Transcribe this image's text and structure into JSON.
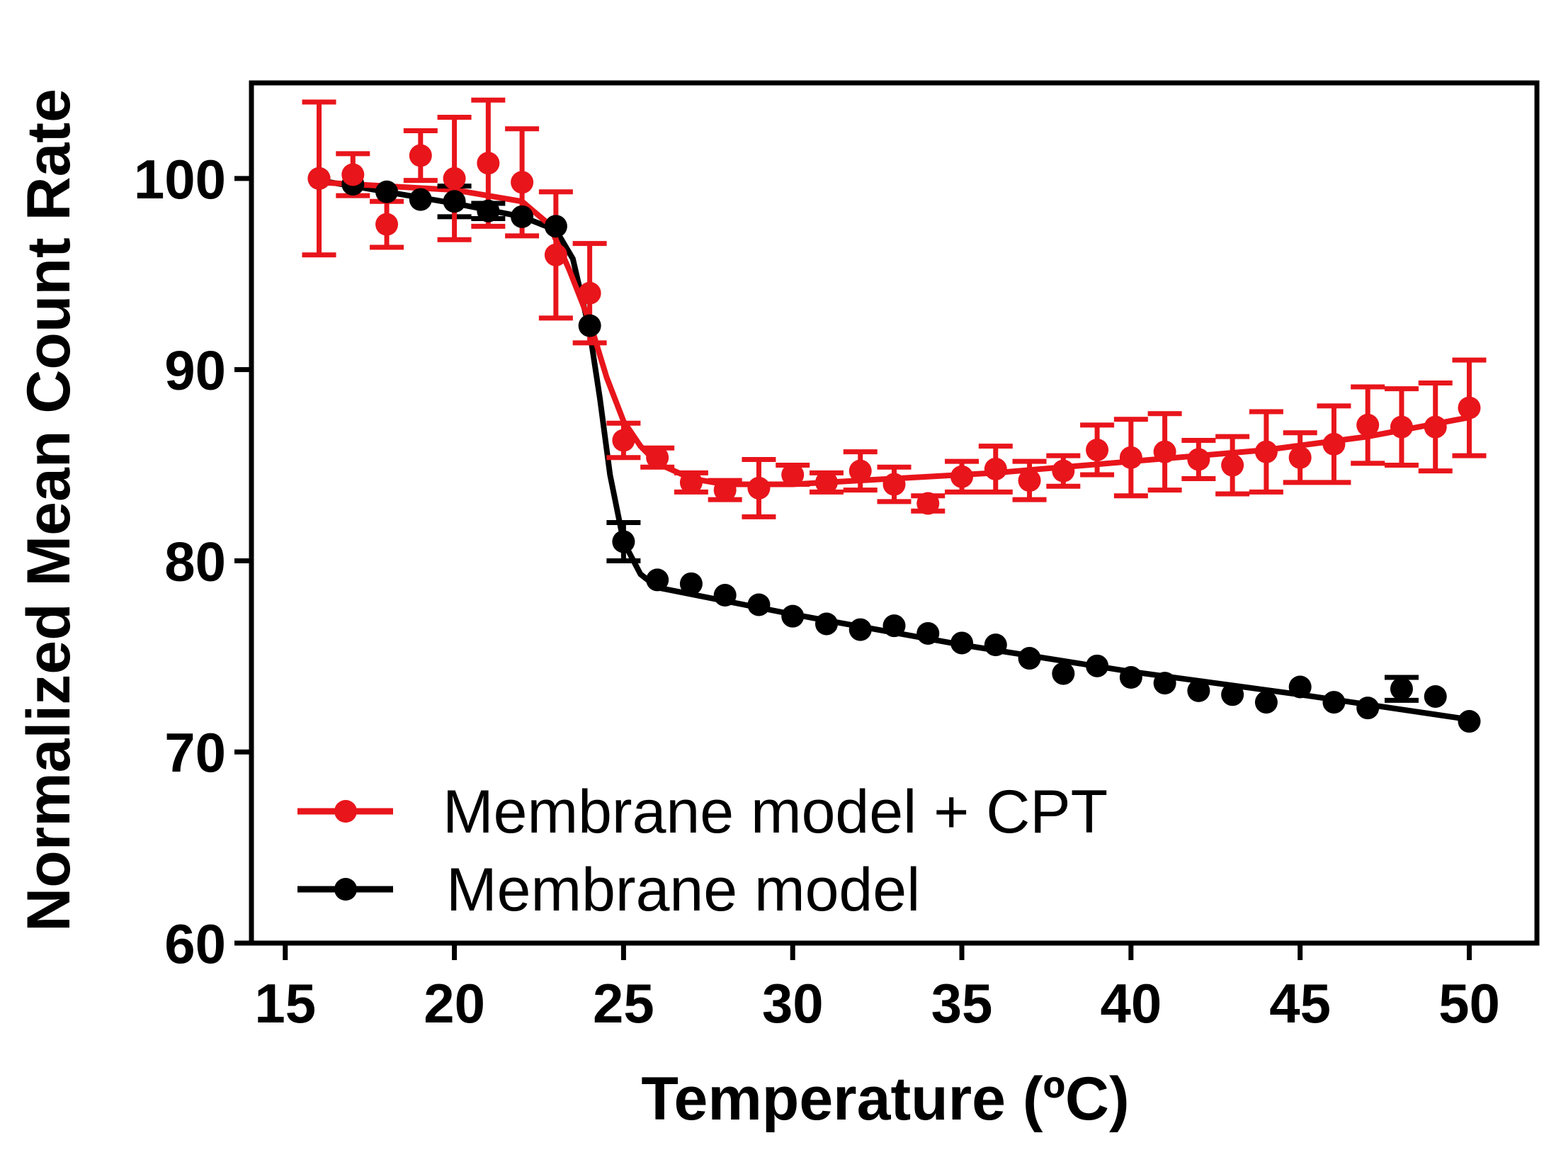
{
  "chart_data": {
    "type": "line",
    "xlabel": "Temperature (ºC)",
    "ylabel": "Normalized Mean Count Rate",
    "xlim": [
      14,
      52
    ],
    "ylim": [
      60,
      105
    ],
    "xticks": [
      15,
      20,
      25,
      30,
      35,
      40,
      45,
      50
    ],
    "yticks": [
      60,
      70,
      80,
      90,
      100
    ],
    "legend_position": "bottom-left",
    "colors": {
      "cpt": "#e8151b",
      "model": "#000000"
    },
    "series": [
      {
        "name": "Membrane model + CPT",
        "color": "#e8151b",
        "x": [
          16,
          17,
          18,
          19,
          20,
          21,
          22,
          23,
          24,
          25,
          26,
          27,
          28,
          29,
          30,
          31,
          32,
          33,
          34,
          35,
          36,
          37,
          38,
          39,
          40,
          41,
          42,
          43,
          44,
          45,
          46,
          47,
          48,
          49,
          50
        ],
        "y": [
          100.0,
          100.2,
          97.6,
          101.2,
          100.0,
          100.8,
          99.8,
          96.0,
          94.0,
          86.3,
          85.4,
          84.1,
          83.7,
          83.8,
          84.5,
          84.1,
          84.7,
          84.0,
          83.0,
          84.4,
          84.8,
          84.2,
          84.7,
          85.8,
          85.4,
          85.7,
          85.3,
          85.0,
          85.7,
          85.4,
          86.1,
          87.1,
          87.0,
          87.0,
          88.0
        ],
        "err": [
          4.0,
          1.1,
          1.2,
          1.3,
          3.2,
          3.3,
          2.8,
          3.3,
          2.6,
          0.9,
          0.5,
          0.5,
          0.5,
          1.5,
          0.5,
          0.5,
          1.0,
          0.9,
          0.4,
          0.8,
          1.2,
          1.0,
          0.8,
          1.3,
          2.0,
          2.0,
          1.0,
          1.5,
          2.1,
          1.3,
          2.0,
          2.0,
          2.0,
          2.3,
          2.5
        ],
        "fit_x": [
          16,
          18,
          20,
          22,
          22.8,
          23.4,
          24,
          24.5,
          25,
          25.5,
          26,
          27,
          28,
          30,
          33,
          36,
          40,
          44,
          47,
          50
        ],
        "fit_y": [
          99.8,
          99.6,
          99.4,
          98.8,
          97.6,
          95.2,
          92.5,
          89.6,
          87.3,
          86.0,
          85.1,
          84.3,
          84.0,
          84.0,
          84.3,
          84.6,
          85.2,
          85.8,
          86.5,
          87.5
        ]
      },
      {
        "name": "Membrane model",
        "color": "#000000",
        "x": [
          16,
          17,
          18,
          19,
          20,
          21,
          22,
          23,
          24,
          25,
          26,
          27,
          28,
          29,
          30,
          31,
          32,
          33,
          34,
          35,
          36,
          37,
          38,
          39,
          40,
          41,
          42,
          43,
          44,
          45,
          46,
          47,
          48,
          49,
          50
        ],
        "y": [
          100.0,
          99.7,
          99.3,
          98.9,
          98.8,
          98.3,
          98.0,
          97.5,
          92.3,
          81.0,
          79.0,
          78.8,
          78.2,
          77.7,
          77.1,
          76.7,
          76.4,
          76.6,
          76.2,
          75.7,
          75.6,
          74.9,
          74.1,
          74.5,
          73.9,
          73.6,
          73.2,
          73.0,
          72.6,
          73.4,
          72.6,
          72.3,
          73.3,
          72.9,
          71.6
        ],
        "err": [
          0.3,
          0.3,
          0.3,
          0.3,
          0.8,
          0.4,
          0.3,
          0.3,
          0.3,
          1.0,
          0.3,
          0.3,
          0.3,
          0.3,
          0.3,
          0.3,
          0.3,
          0.3,
          0.3,
          0.3,
          0.3,
          0.3,
          0.3,
          0.3,
          0.3,
          0.3,
          0.3,
          0.3,
          0.3,
          0.3,
          0.3,
          0.3,
          0.6,
          0.3,
          0.3
        ],
        "fit_x": [
          16,
          18,
          20,
          22,
          23,
          23.5,
          24,
          24.3,
          24.6,
          25,
          25.5,
          26,
          30,
          35,
          40,
          45,
          50
        ],
        "fit_y": [
          99.9,
          99.3,
          98.7,
          98.0,
          97.3,
          95.8,
          92.0,
          88.5,
          84.5,
          81.0,
          79.3,
          78.6,
          77.2,
          75.6,
          74.2,
          73.0,
          71.7
        ]
      }
    ]
  }
}
